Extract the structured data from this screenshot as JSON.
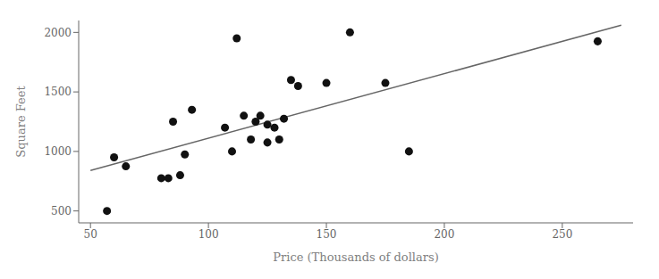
{
  "chart_data": {
    "type": "scatter",
    "x_label": "Price (Thousands of dollars)",
    "y_label": "Square Feet",
    "xlim": [
      45,
      280
    ],
    "ylim": [
      400,
      2100
    ],
    "xticks": [
      50,
      100,
      150,
      200,
      250
    ],
    "yticks": [
      500,
      1000,
      1500,
      2000
    ],
    "grid": false,
    "series": [
      {
        "type": "line",
        "color": "#666666",
        "x": [
          50,
          275
        ],
        "values": [
          840,
          2060
        ]
      },
      {
        "type": "scatter",
        "color": "#111111",
        "x": [
          57,
          60,
          65,
          80,
          83,
          85,
          88,
          90,
          93,
          107,
          110,
          112,
          115,
          118,
          120,
          122,
          125,
          125,
          128,
          130,
          132,
          135,
          138,
          150,
          160,
          175,
          185,
          265
        ],
        "values": [
          500,
          950,
          875,
          775,
          775,
          1250,
          800,
          975,
          1350,
          1200,
          1000,
          1950,
          1300,
          1100,
          1250,
          1300,
          1075,
          1225,
          1200,
          1100,
          1275,
          1600,
          1550,
          1575,
          2000,
          1575,
          1000,
          1925
        ]
      }
    ]
  }
}
